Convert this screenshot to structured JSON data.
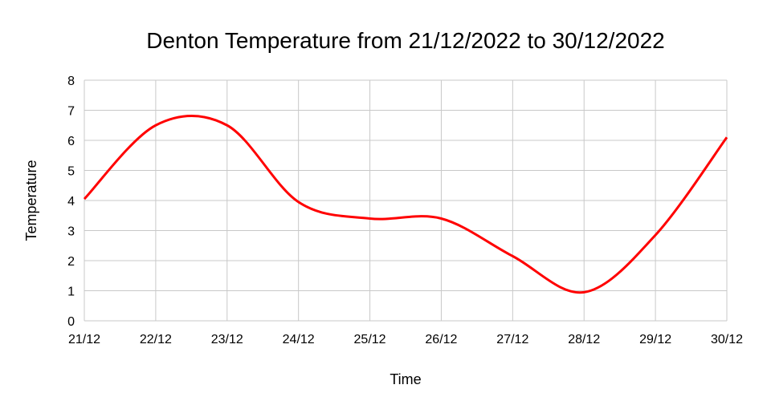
{
  "chart_data": {
    "type": "line",
    "title": "Denton Temperature from 21/12/2022 to 30/12/2022",
    "xlabel": "Time",
    "ylabel": "Temperature",
    "categories": [
      "21/12",
      "22/12",
      "23/12",
      "24/12",
      "25/12",
      "26/12",
      "27/12",
      "28/12",
      "29/12",
      "30/12"
    ],
    "series": [
      {
        "values": [
          4.05,
          6.5,
          6.5,
          3.95,
          3.4,
          3.4,
          2.15,
          0.95,
          2.85,
          6.1
        ],
        "color": "#ff0000"
      }
    ],
    "ylim": [
      0,
      8
    ],
    "yticks": [
      "0",
      "1",
      "2",
      "3",
      "4",
      "5",
      "6",
      "7",
      "8"
    ],
    "grid": true,
    "legend": "none"
  }
}
